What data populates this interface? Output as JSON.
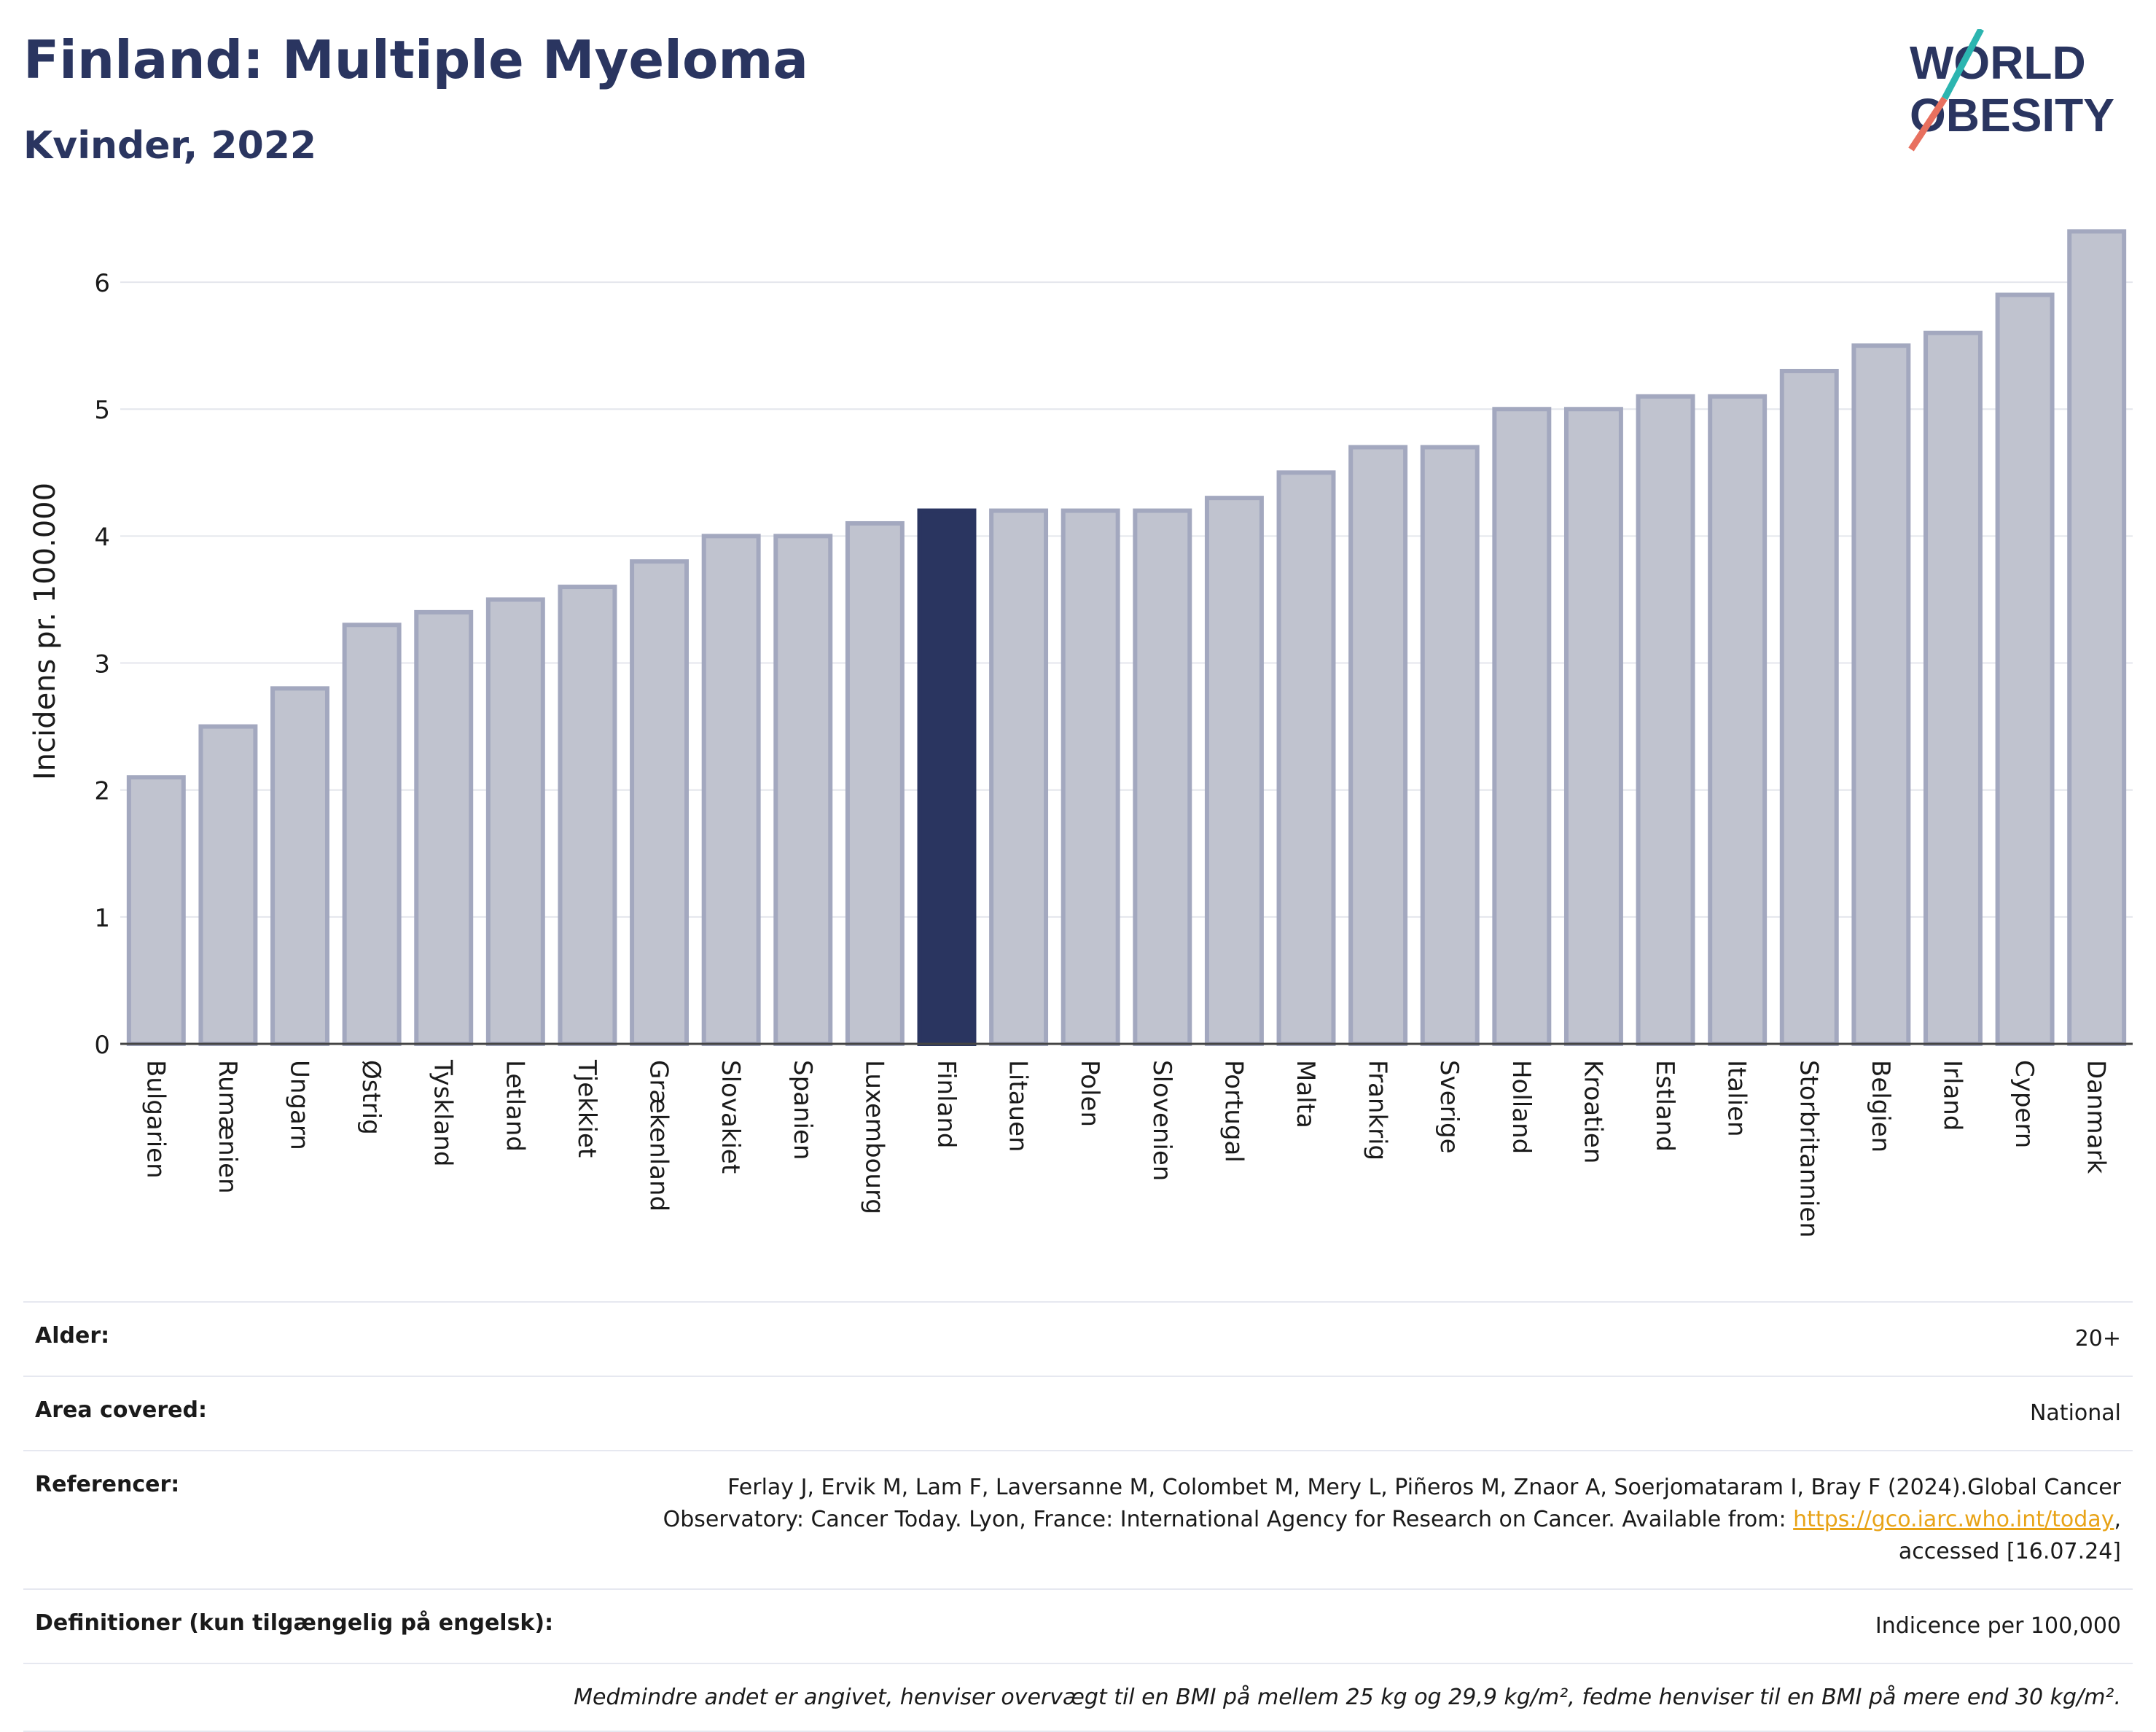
{
  "header": {
    "title": "Finland: Multiple Myeloma",
    "subtitle": "Kvinder, 2022"
  },
  "logo": {
    "line1": "WORLD",
    "line2": "OBESITY"
  },
  "chart_data": {
    "type": "bar",
    "ylabel": "Incidens pr. 100.000",
    "ylim": [
      0,
      6.5
    ],
    "yticks": [
      0,
      1,
      2,
      3,
      4,
      5,
      6
    ],
    "grid": true,
    "highlight": "Finland",
    "colors": {
      "bar": "#c0c3cf",
      "bar_edge": "#a3a8bf",
      "highlight": "#2a3560"
    },
    "categories": [
      "Bulgarien",
      "Rumænien",
      "Ungarn",
      "Østrig",
      "Tyskland",
      "Letland",
      "Tjekkiet",
      "Grækenland",
      "Slovakiet",
      "Spanien",
      "Luxembourg",
      "Finland",
      "Litauen",
      "Polen",
      "Slovenien",
      "Portugal",
      "Malta",
      "Frankrig",
      "Sverige",
      "Holland",
      "Kroatien",
      "Estland",
      "Italien",
      "Storbritannien",
      "Belgien",
      "Irland",
      "Cypern",
      "Danmark"
    ],
    "values": [
      2.1,
      2.5,
      2.8,
      3.3,
      3.4,
      3.5,
      3.6,
      3.8,
      4.0,
      4.0,
      4.1,
      4.2,
      4.2,
      4.2,
      4.2,
      4.3,
      4.5,
      4.7,
      4.7,
      5.0,
      5.0,
      5.1,
      5.1,
      5.3,
      5.5,
      5.6,
      5.9,
      6.4
    ]
  },
  "meta": {
    "age_label": "Alder:",
    "age_value": "20+",
    "area_label": "Area covered:",
    "area_value": "National",
    "ref_label": "Referencer:",
    "ref_line1": "Ferlay J, Ervik M, Lam F, Laversanne M, Colombet M, Mery L, Piñeros M, Znaor A, Soerjomataram I, Bray F (2024).Global Cancer",
    "ref_line2_pre": "Observatory: Cancer Today. Lyon, France: International Agency for Research on Cancer. Available from: ",
    "ref_link": "https://gco.iarc.who.int/today",
    "ref_line2_post": ",",
    "ref_line3": "accessed [16.07.24]",
    "def_label": "Definitioner (kun tilgængelig på engelsk):",
    "def_value": "Indicence per 100,000",
    "note": "Medmindre andet er angivet, henviser overvægt til en BMI på mellem 25 kg og 29,9 kg/m², fedme henviser til en BMI på mere end 30 kg/m²."
  }
}
